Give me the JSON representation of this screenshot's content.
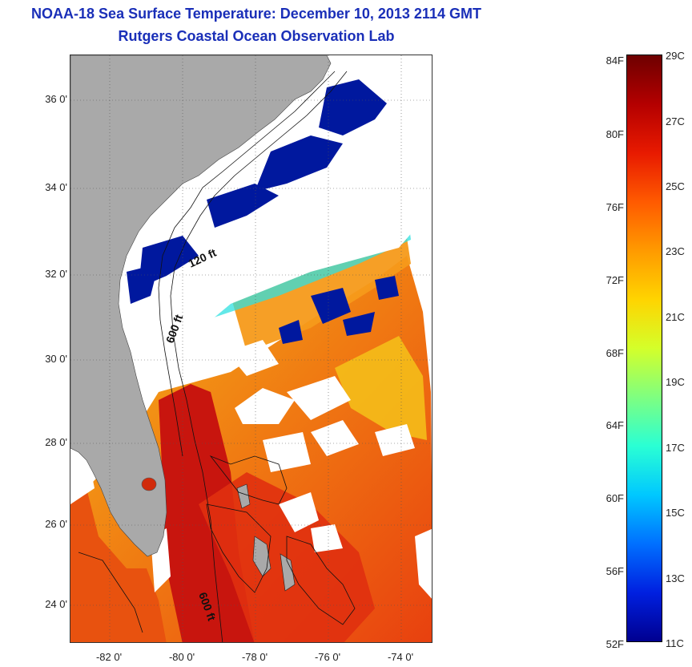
{
  "title": {
    "line1": "NOAA-18 Sea Surface Temperature:  December 10, 2013 2114 GMT",
    "line2": "Rutgers Coastal Ocean Observation Lab"
  },
  "map": {
    "lat_labels": [
      "36 0'",
      "34 0'",
      "32 0'",
      "30 0'",
      "28 0'",
      "26 0'",
      "24 0'"
    ],
    "lon_labels": [
      "-82 0'",
      "-80 0'",
      "-78 0'",
      "-76 0'",
      "-74 0'"
    ],
    "contour_labels": [
      "120 ft",
      "600 ft",
      "600 ft"
    ],
    "colors": {
      "land": "#a9a9a9",
      "cold": "#00189e",
      "cyan": "#2fe0e0",
      "yellow": "#f5c21a",
      "orange": "#f07a12",
      "red": "#e02a0f",
      "deep_red": "#c0120d"
    }
  },
  "colorbar": {
    "fahrenheit_labels": [
      "84F",
      "80F",
      "76F",
      "72F",
      "68F",
      "64F",
      "60F",
      "56F",
      "52F"
    ],
    "celsius_labels": [
      "29C",
      "27C",
      "25C",
      "23C",
      "21C",
      "19C",
      "17C",
      "15C",
      "13C",
      "11C"
    ],
    "range_c": [
      11,
      29
    ],
    "range_f": [
      52,
      84
    ],
    "gradient": [
      "#6e0000",
      "#b40000",
      "#e81a00",
      "#ff5a00",
      "#ff9a00",
      "#ffd400",
      "#d4ff2a",
      "#7fff80",
      "#2affd4",
      "#00c8ff",
      "#0070ff",
      "#0020e0",
      "#000090"
    ]
  }
}
